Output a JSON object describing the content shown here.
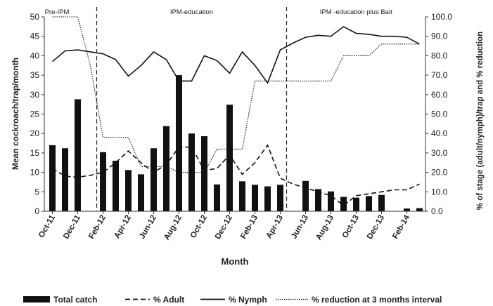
{
  "chart_data": {
    "type": "bar",
    "xlabel": "Month",
    "ylabel_left": "Mean cockroach/trap/month",
    "ylabel_right": "% of stage (adult/nymph)/trap and % reduction",
    "ylim_left": [
      0,
      50
    ],
    "ylim_right": [
      0,
      100
    ],
    "yticks_left": [
      "0",
      "5",
      "10",
      "15",
      "20",
      "25",
      "30",
      "35",
      "40",
      "45",
      "50"
    ],
    "yticks_right": [
      "0.0",
      "10.0",
      "20.0",
      "30.0",
      "40.0",
      "50.0",
      "60.0",
      "70.0",
      "80.0",
      "90.0",
      "100.0"
    ],
    "x_tick_labels": [
      "Oct-11",
      "Dec-11",
      "Feb-12",
      "Apr-12",
      "Jun-12",
      "Aug-12",
      "Oct-12",
      "Dec-12",
      "Feb-13",
      "Apr-13",
      "Jun-13",
      "Aug-13",
      "Oct-13",
      "Dec-13",
      "Feb-14"
    ],
    "months": [
      "Oct-11",
      "Nov-11",
      "Dec-11",
      "Jan-12",
      "Feb-12",
      "Mar-12",
      "Apr-12",
      "May-12",
      "Jun-12",
      "Jul-12",
      "Aug-12",
      "Sep-12",
      "Oct-12",
      "Nov-12",
      "Dec-12",
      "Jan-13",
      "Feb-13",
      "Mar-13",
      "Apr-13",
      "May-13",
      "Jun-13",
      "Jul-13",
      "Aug-13",
      "Sep-13",
      "Oct-13",
      "Nov-13",
      "Dec-13",
      "Jan-14",
      "Feb-14",
      "Mar-14"
    ],
    "phases": [
      {
        "label": "Pre-IPM",
        "start_month": "Oct-11"
      },
      {
        "label": "IPM-education",
        "start_month": "Feb-12"
      },
      {
        "label": "IPM -education plus Bait",
        "start_month": "May-13"
      }
    ],
    "series": [
      {
        "name": "Total catch",
        "kind": "bar",
        "axis": "left",
        "color": "#111111",
        "values": [
          17,
          16.2,
          28.8,
          null,
          15.2,
          13,
          10.6,
          9.5,
          16.2,
          21.9,
          35,
          20,
          19.3,
          6.9,
          27.4,
          7.7,
          6.8,
          6.4,
          6.8,
          null,
          7.8,
          5.7,
          5.1,
          3.7,
          3.5,
          3.9,
          4.2,
          null,
          0.7,
          0.8
        ]
      },
      {
        "name": "% Adult",
        "kind": "line",
        "axis": "right",
        "dash": "dashed",
        "color": "#111111",
        "values": [
          22,
          18,
          17.5,
          18.5,
          20,
          25,
          31,
          25,
          20,
          24,
          33,
          33,
          21,
          22,
          29,
          19,
          25,
          34,
          17,
          14,
          12,
          10,
          8,
          3,
          8,
          9,
          10,
          11,
          11,
          14
        ]
      },
      {
        "name": "% Nymph",
        "kind": "line",
        "axis": "right",
        "dash": "solid",
        "color": "#111111",
        "values": [
          77,
          82.5,
          83,
          82,
          81,
          78,
          69.5,
          75,
          82,
          78,
          67,
          67,
          80,
          77.5,
          71,
          82,
          75,
          66,
          83,
          86.5,
          89.5,
          90.5,
          90,
          95,
          91.5,
          91,
          90,
          90,
          89.5,
          86
        ]
      },
      {
        "name": "% reduction at 3 months interval",
        "kind": "line",
        "axis": "right",
        "dash": "dotted",
        "color": "#111111",
        "values": [
          100,
          100,
          100,
          75,
          38,
          38,
          38,
          23,
          23,
          23,
          20,
          20,
          20,
          32,
          32,
          32,
          67,
          67,
          67,
          67,
          67,
          67,
          67,
          80,
          80,
          80,
          86,
          86,
          86,
          86
        ]
      }
    ],
    "legend_position": "bottom",
    "grid": false
  }
}
